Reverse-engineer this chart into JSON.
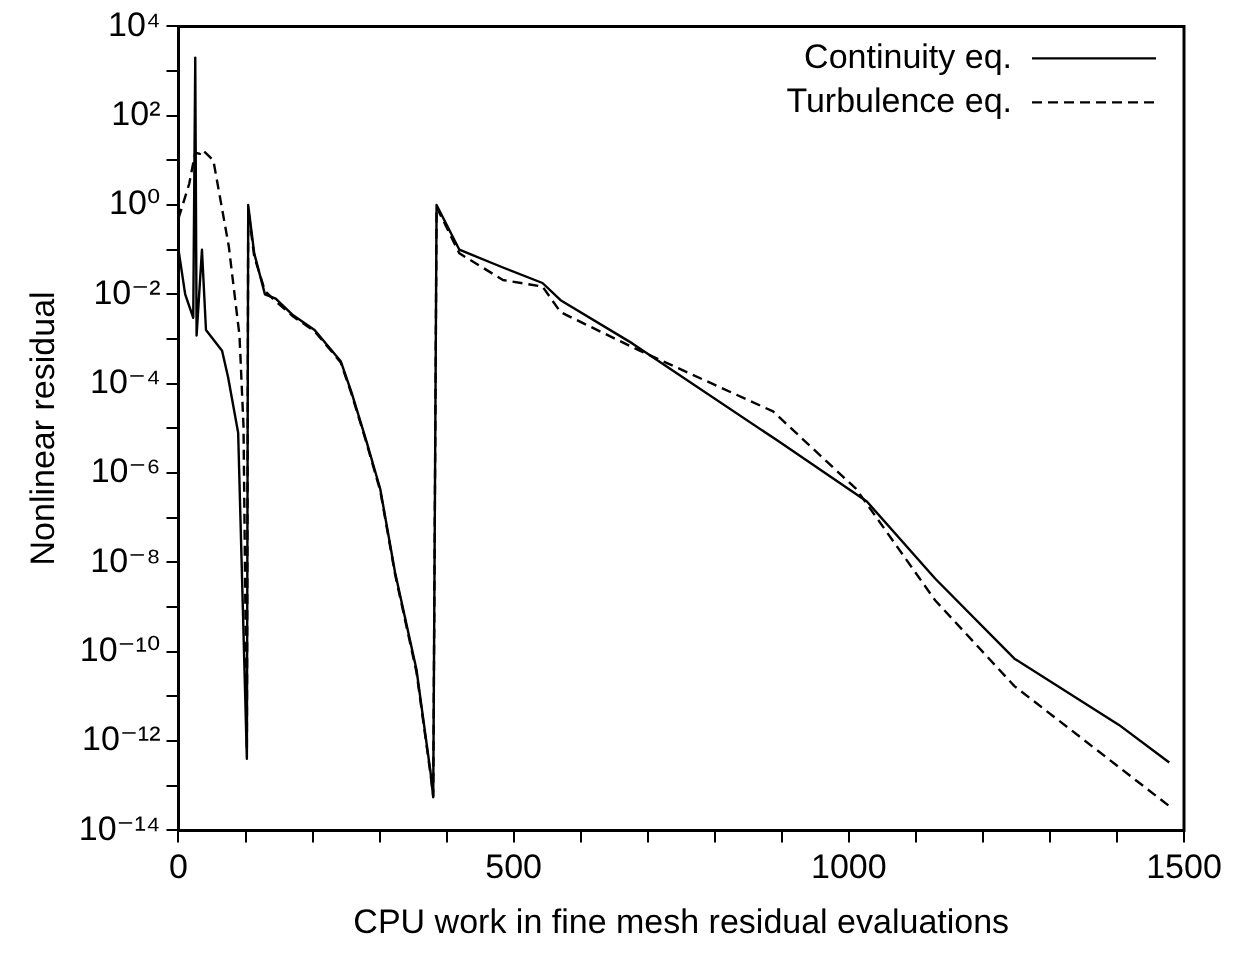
{
  "chart_data": {
    "type": "line",
    "xlabel": "CPU work in fine mesh residual evaluations",
    "ylabel": "Nonlinear residual",
    "log": "y",
    "grid": false,
    "legend": "top right",
    "marker": "none",
    "xlim": [
      0,
      1500
    ],
    "xticks": [
      0,
      {
        "value": 100,
        "label": null
      },
      {
        "value": 200,
        "label": null
      },
      {
        "value": 300,
        "label": null
      },
      {
        "value": 400,
        "label": null
      },
      500,
      {
        "value": 600,
        "label": null
      },
      {
        "value": 700,
        "label": null
      },
      {
        "value": 800,
        "label": null
      },
      {
        "value": 900,
        "label": null
      },
      1000,
      {
        "value": 1100,
        "label": null
      },
      {
        "value": 1200,
        "label": null
      },
      {
        "value": 1300,
        "label": null
      },
      {
        "value": 1400,
        "label": null
      },
      1500
    ],
    "ylim": [
      1e-14,
      10000
    ],
    "yticks": [
      {
        "value": 1e-14,
        "label": "10⁻¹⁴"
      },
      {
        "value": 1e-13,
        "label": null
      },
      {
        "value": 1e-12,
        "label": "10⁻¹²"
      },
      {
        "value": 1e-11,
        "label": null
      },
      {
        "value": 1e-10,
        "label": "10⁻¹⁰"
      },
      {
        "value": 1e-09,
        "label": null
      },
      {
        "value": 1e-08,
        "label": "10⁻⁸"
      },
      {
        "value": 1e-07,
        "label": null
      },
      {
        "value": 1e-06,
        "label": "10⁻⁶"
      },
      {
        "value": 1e-05,
        "label": null
      },
      {
        "value": 0.0001,
        "label": "10⁻⁴"
      },
      {
        "value": 0.001,
        "label": null
      },
      {
        "value": 0.01,
        "label": "10⁻²"
      },
      {
        "value": 0.1,
        "label": null
      },
      {
        "value": 1,
        "label": "10⁰"
      },
      {
        "value": 10,
        "label": null
      },
      {
        "value": 100,
        "label": "10²"
      },
      {
        "value": 1000,
        "label": null
      },
      {
        "value": 10000,
        "label": "10⁴"
      }
    ],
    "series": [
      {
        "name": "Continuity eq.",
        "color": "#000000",
        "line_style": "solid",
        "x": [
          0,
          10,
          22,
          25,
          27,
          35,
          41,
          65,
          74,
          89,
          102,
          104,
          113,
          129,
          145,
          171,
          203,
          242,
          258,
          280,
          301,
          323,
          355,
          376,
          380,
          385,
          419,
          484,
          543,
          570,
          677,
          893,
          1027,
          1129,
          1247,
          1403,
          1478
        ],
        "values": [
          0.1,
          0.01,
          0.003,
          2000,
          0.0012,
          0.1,
          0.0016,
          0.00055,
          0.00014,
          8e-06,
          4e-13,
          1,
          0.083,
          0.01,
          0.008,
          0.0034,
          0.0016,
          0.00032,
          6.5e-05,
          5.4e-06,
          4.4e-07,
          6e-09,
          4e-11,
          2e-13,
          5.5e-14,
          1,
          0.1,
          0.04,
          0.018,
          0.0074,
          0.0008,
          5.4e-06,
          2.3e-07,
          4.3e-09,
          7e-11,
          2.3e-12,
          3.3e-13
        ]
      },
      {
        "name": "Turbulence eq.",
        "color": "#000000",
        "line_style": "dashed",
        "x": [
          0,
          16,
          25,
          32,
          36,
          52,
          75,
          91,
          97,
          102,
          104,
          113,
          129,
          145,
          171,
          203,
          242,
          258,
          280,
          301,
          323,
          355,
          376,
          380,
          385,
          419,
          484,
          543,
          570,
          688,
          887,
          1011,
          1129,
          1247,
          1478
        ],
        "values": [
          0.5,
          3,
          15,
          14,
          17,
          10,
          0.12,
          0.0012,
          1.1e-05,
          6e-13,
          0.8,
          0.07,
          0.012,
          0.007,
          0.0032,
          0.0015,
          0.0003,
          6e-05,
          5e-06,
          4e-07,
          5.5e-09,
          3.5e-11,
          1.8e-13,
          6e-14,
          0.9,
          0.083,
          0.021,
          0.015,
          0.004,
          0.00055,
          2.4e-05,
          4.4e-07,
          1.4e-09,
          1.7e-11,
          3.5e-14
        ]
      }
    ]
  }
}
